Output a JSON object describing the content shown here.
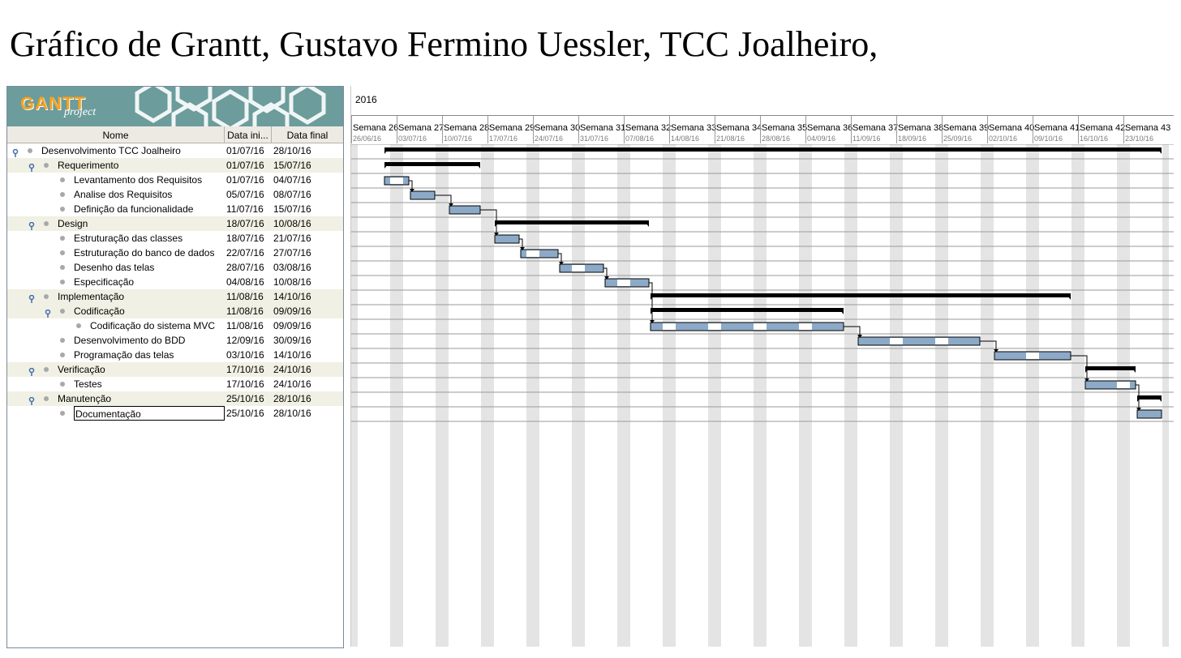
{
  "document": {
    "title": "Gráfico de Grantt, Gustavo Fermino Uessler, TCC Joalheiro,"
  },
  "logo": {
    "brand": "GANTT",
    "sub": "project"
  },
  "tree": {
    "columns": {
      "name": "Nome",
      "start": "Data ini...",
      "end": "Data final"
    },
    "rows": [
      {
        "name": "Desenvolvimento TCC Joalheiro",
        "start": "01/07/16",
        "end": "28/10/16"
      },
      {
        "name": "Requerimento",
        "start": "01/07/16",
        "end": "15/07/16"
      },
      {
        "name": "Levantamento dos Requisitos",
        "start": "01/07/16",
        "end": "04/07/16"
      },
      {
        "name": "Analise dos Requisitos",
        "start": "05/07/16",
        "end": "08/07/16"
      },
      {
        "name": "Definição da funcionalidade",
        "start": "11/07/16",
        "end": "15/07/16"
      },
      {
        "name": "Design",
        "start": "18/07/16",
        "end": "10/08/16"
      },
      {
        "name": "Estruturação das classes",
        "start": "18/07/16",
        "end": "21/07/16"
      },
      {
        "name": "Estruturação do banco de dados",
        "start": "22/07/16",
        "end": "27/07/16"
      },
      {
        "name": "Desenho das telas",
        "start": "28/07/16",
        "end": "03/08/16"
      },
      {
        "name": "Especificação",
        "start": "04/08/16",
        "end": "10/08/16"
      },
      {
        "name": "Implementação",
        "start": "11/08/16",
        "end": "14/10/16"
      },
      {
        "name": "Codificação",
        "start": "11/08/16",
        "end": "09/09/16"
      },
      {
        "name": "Codificação do sistema MVC",
        "start": "11/08/16",
        "end": "09/09/16"
      },
      {
        "name": "Desenvolvimento do BDD",
        "start": "12/09/16",
        "end": "30/09/16"
      },
      {
        "name": "Programação das telas",
        "start": "03/10/16",
        "end": "14/10/16"
      },
      {
        "name": "Verificação",
        "start": "17/10/16",
        "end": "24/10/16"
      },
      {
        "name": "Testes",
        "start": "17/10/16",
        "end": "24/10/16"
      },
      {
        "name": "Manutenção",
        "start": "25/10/16",
        "end": "28/10/16"
      },
      {
        "name": "Documentação",
        "start": "25/10/16",
        "end": "28/10/16"
      }
    ]
  },
  "timeline": {
    "year": "2016",
    "weeks": [
      {
        "name": "Semana 26",
        "date": "26/06/16"
      },
      {
        "name": "Semana 27",
        "date": "03/07/16"
      },
      {
        "name": "Semana 28",
        "date": "10/07/16"
      },
      {
        "name": "Semana 29",
        "date": "17/07/16"
      },
      {
        "name": "Semana 30",
        "date": "24/07/16"
      },
      {
        "name": "Semana 31",
        "date": "31/07/16"
      },
      {
        "name": "Semana 32",
        "date": "07/08/16"
      },
      {
        "name": "Semana 33",
        "date": "14/08/16"
      },
      {
        "name": "Semana 34",
        "date": "21/08/16"
      },
      {
        "name": "Semana 35",
        "date": "28/08/16"
      },
      {
        "name": "Semana 36",
        "date": "04/09/16"
      },
      {
        "name": "Semana 37",
        "date": "11/09/16"
      },
      {
        "name": "Semana 38",
        "date": "18/09/16"
      },
      {
        "name": "Semana 39",
        "date": "25/09/16"
      },
      {
        "name": "Semana 40",
        "date": "02/10/16"
      },
      {
        "name": "Semana 41",
        "date": "09/10/16"
      },
      {
        "name": "Semana 42",
        "date": "16/10/16"
      },
      {
        "name": "Semana 43",
        "date": "23/10/16"
      }
    ]
  },
  "colors": {
    "task_fill": "#8caac8",
    "summary_bar": "#000000",
    "weekend_shade": "#e4e4e4",
    "tree_alt_row": "#f1f0e4",
    "logo_bg": "#6c9c9c",
    "logo_text": "#f7a21b"
  }
}
